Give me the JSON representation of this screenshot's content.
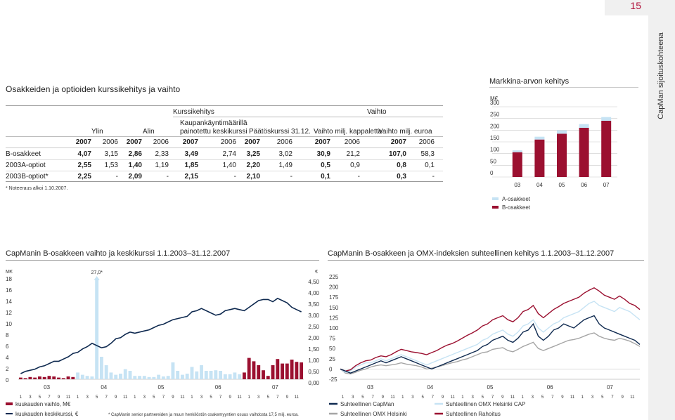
{
  "page_number": "15",
  "sidebar_label": "CapMan sijoituskohteena",
  "table": {
    "title": "Osakkeiden ja optioiden kurssikehitys ja vaihto",
    "group_kurssikehitys": "Kurssikehitys",
    "group_vaihto": "Vaihto",
    "col_ylin": "Ylin",
    "col_alin": "Alin",
    "col_kaupankaynti": [
      "Kaupankäyntimäärillä",
      "painotettu keskikurssi"
    ],
    "col_paatoskurssi": "Päätöskurssi 31.12.",
    "col_vaihto_kpl": "Vaihto milj. kappaletta",
    "col_vaihto_eur": "Vaihto milj. euroa",
    "years": [
      "2007",
      "2006",
      "2007",
      "2006",
      "2007",
      "2006",
      "2007",
      "2006",
      "2007",
      "2006",
      "2007",
      "2006"
    ],
    "rows": [
      {
        "label": "B-osakkeet",
        "values": [
          "4,07",
          "3,15",
          "2,86",
          "2,33",
          "3,49",
          "2,74",
          "3,25",
          "3,02",
          "30,9",
          "21,2",
          "107,0",
          "58,3"
        ]
      },
      {
        "label": "2003A-optiot",
        "values": [
          "2,55",
          "1,53",
          "1,40",
          "1,19",
          "1,85",
          "1,40",
          "2,20",
          "1,49",
          "0,5",
          "0,9",
          "0,8",
          "0,1"
        ]
      },
      {
        "label": "2003B-optiot*",
        "values": [
          "2,25",
          "-",
          "2,09",
          "-",
          "2,15",
          "-",
          "2,10",
          "-",
          "0,1",
          "-",
          "0,3",
          "-"
        ]
      }
    ],
    "footnote": "* Noteeraus alkoi 1.10.2007."
  },
  "market_chart": {
    "title": "Markkina-arvon kehitys",
    "unit": "M€",
    "colors": {
      "a": "#c6e3f4",
      "b": "#9b1030"
    },
    "chart_data": {
      "type": "bar",
      "stacked": true,
      "categories": [
        "03",
        "04",
        "05",
        "06",
        "07"
      ],
      "series": [
        {
          "name": "B-osakkeet",
          "values": [
            106,
            160,
            185,
            210,
            240
          ]
        },
        {
          "name": "A-osakkeet",
          "values": [
            8,
            12,
            14,
            16,
            16
          ]
        }
      ],
      "yticks": [
        "300",
        "250",
        "200",
        "150",
        "100",
        "50",
        "0"
      ],
      "ylim": [
        0,
        300
      ],
      "legend": [
        "A-osakkeet",
        "B-osakkeet"
      ]
    }
  },
  "volume_chart": {
    "title": "CapManin B-osakkeen vaihto ja keskikurssi 1.1.2003–31.12.2007",
    "unit_left": "M€",
    "unit_right": "€",
    "peak_label": "27,0*",
    "left_ticks": [
      "18",
      "16",
      "14",
      "12",
      "10",
      "8",
      "6",
      "4",
      "2",
      "0"
    ],
    "right_ticks": [
      "4,50",
      "4,00",
      "3,50",
      "3,00",
      "2,50",
      "2,00",
      "1,50",
      "1,00",
      "0,50",
      "0,00"
    ],
    "year_ticks": [
      "03",
      "04",
      "05",
      "06",
      "07"
    ],
    "month_ticks": [
      "1",
      "3",
      "5",
      "7",
      "9",
      "11",
      "1",
      "3",
      "5",
      "7",
      "9",
      "11",
      "1",
      "3",
      "5",
      "7",
      "9",
      "11",
      "1",
      "3",
      "5",
      "7",
      "9",
      "11",
      "1",
      "3",
      "5",
      "7",
      "9",
      "11"
    ],
    "legend_volume": "kuukauden vaihto, M€",
    "legend_price": "kuukauden keskikurssi, €",
    "footnote": "* CapManin senior partnereiden ja muun henkilöstön osakemyyntien osuus vaihdosta 17,5 milj. euroa.",
    "colors": {
      "bars_light": "#c6e3f4",
      "bars_dark": "#9b1030",
      "line": "#0f2a50"
    },
    "chart_data": {
      "type": "bar+line",
      "x_months": 60,
      "volume": [
        0.3,
        0.2,
        0.4,
        0.3,
        0.5,
        0.4,
        0.6,
        0.5,
        0.3,
        0.2,
        0.5,
        0.4,
        1.2,
        0.8,
        0.6,
        0.5,
        18,
        4,
        2.5,
        1.2,
        0.8,
        1.0,
        1.8,
        1.5,
        0.6,
        0.6,
        0.6,
        0.4,
        0.4,
        0.8,
        0.5,
        0.6,
        3.0,
        1.5,
        0.8,
        1.0,
        2.2,
        1.4,
        2.5,
        1.5,
        1.5,
        1.6,
        1.5,
        0.9,
        0.9,
        1.2,
        0.9,
        1.2,
        3.8,
        3.2,
        2.5,
        1.6,
        0.6,
        2.5,
        3.6,
        2.8,
        2.8,
        3.5,
        3.1,
        3.0
      ],
      "volume_dark_from": 47,
      "price": [
        0.25,
        0.35,
        0.4,
        0.45,
        0.55,
        0.6,
        0.7,
        0.8,
        0.8,
        0.9,
        1.0,
        1.15,
        1.2,
        1.35,
        1.45,
        1.6,
        1.5,
        1.4,
        1.45,
        1.6,
        1.8,
        1.85,
        2.0,
        2.1,
        2.05,
        2.1,
        2.15,
        2.2,
        2.3,
        2.4,
        2.45,
        2.55,
        2.65,
        2.7,
        2.75,
        2.8,
        3.0,
        3.05,
        3.15,
        3.05,
        2.95,
        2.85,
        2.9,
        3.05,
        3.1,
        3.15,
        3.1,
        3.05,
        3.2,
        3.35,
        3.5,
        3.55,
        3.55,
        3.45,
        3.6,
        3.5,
        3.4,
        3.2,
        3.1,
        3.0
      ]
    }
  },
  "index_chart": {
    "title": "CapManin B-osakkeen ja OMX-indeksien suhteellinen kehitys 1.1.2003–31.12.2007",
    "yticks": [
      "225",
      "200",
      "175",
      "150",
      "125",
      "100",
      "75",
      "50",
      "25",
      "0",
      "-25"
    ],
    "year_ticks": [
      "03",
      "04",
      "05",
      "06",
      "07"
    ],
    "month_ticks": [
      "1",
      "3",
      "5",
      "7",
      "9",
      "11",
      "1",
      "3",
      "5",
      "7",
      "9",
      "11",
      "1",
      "3",
      "5",
      "7",
      "9",
      "11",
      "1",
      "3",
      "5",
      "7",
      "9",
      "11",
      "1",
      "3",
      "5",
      "7",
      "9",
      "11"
    ],
    "legend": [
      "Suhteellinen CapMan",
      "Suhteellinen OMX Helsinki CAP",
      "Suhteellinen OMX Helsinki",
      "Suhteellinen Rahoitus"
    ],
    "colors": {
      "capman": "#0f2a50",
      "cap": "#c6e3f4",
      "omx": "#a5a5a5",
      "rahoitus": "#9b1030"
    },
    "chart_data": {
      "type": "line",
      "ylim": [
        -25,
        225
      ],
      "series": [
        {
          "name": "Suhteellinen CapMan",
          "values": [
            0,
            -5,
            -10,
            -5,
            0,
            5,
            10,
            15,
            20,
            15,
            20,
            25,
            30,
            25,
            20,
            15,
            10,
            5,
            0,
            5,
            10,
            15,
            20,
            25,
            30,
            35,
            40,
            45,
            55,
            60,
            70,
            75,
            80,
            70,
            65,
            75,
            90,
            95,
            110,
            80,
            70,
            80,
            95,
            100,
            110,
            105,
            100,
            110,
            120,
            125,
            130,
            110,
            100,
            95,
            90,
            85,
            80,
            75,
            70,
            60
          ]
        },
        {
          "name": "Suhteellinen OMX Helsinki CAP",
          "values": [
            0,
            -8,
            -5,
            5,
            10,
            15,
            15,
            20,
            25,
            20,
            25,
            30,
            35,
            30,
            25,
            20,
            15,
            10,
            15,
            20,
            25,
            30,
            35,
            40,
            45,
            50,
            55,
            60,
            70,
            75,
            85,
            90,
            95,
            85,
            80,
            90,
            105,
            110,
            120,
            100,
            90,
            100,
            110,
            115,
            125,
            130,
            135,
            140,
            150,
            160,
            165,
            155,
            150,
            145,
            140,
            150,
            145,
            140,
            130,
            120
          ]
        },
        {
          "name": "Suhteellinen OMX Helsinki",
          "values": [
            0,
            -10,
            -12,
            -8,
            -3,
            0,
            5,
            8,
            10,
            8,
            10,
            12,
            15,
            12,
            10,
            8,
            5,
            0,
            2,
            5,
            8,
            12,
            15,
            18,
            22,
            25,
            30,
            35,
            40,
            42,
            48,
            50,
            52,
            45,
            42,
            48,
            55,
            60,
            65,
            50,
            45,
            50,
            55,
            60,
            65,
            70,
            72,
            75,
            80,
            85,
            88,
            80,
            75,
            72,
            70,
            75,
            72,
            68,
            62,
            55
          ]
        },
        {
          "name": "Suhteellinen Rahoitus",
          "values": [
            0,
            -5,
            -2,
            8,
            15,
            20,
            22,
            28,
            32,
            30,
            35,
            42,
            48,
            45,
            42,
            40,
            38,
            35,
            40,
            45,
            52,
            58,
            62,
            68,
            75,
            82,
            88,
            95,
            105,
            110,
            120,
            125,
            130,
            120,
            115,
            125,
            140,
            145,
            155,
            135,
            125,
            135,
            145,
            152,
            160,
            165,
            170,
            175,
            185,
            192,
            198,
            190,
            180,
            175,
            170,
            178,
            170,
            160,
            155,
            145
          ]
        }
      ]
    }
  }
}
